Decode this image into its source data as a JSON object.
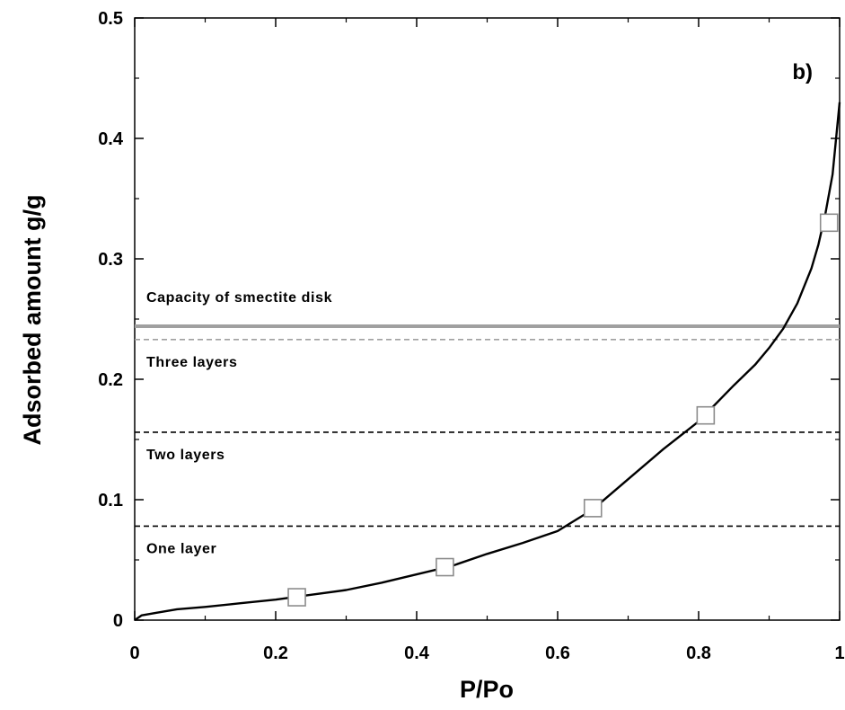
{
  "chart_data": {
    "type": "line",
    "title": "",
    "panel_label": "b)",
    "xlabel": "P/Po",
    "ylabel": "Adsorbed amount g/g",
    "xlim": [
      0,
      1
    ],
    "ylim": [
      0,
      0.5
    ],
    "x_ticks": [
      0,
      0.2,
      0.4,
      0.6,
      0.8,
      1
    ],
    "x_tick_labels": [
      "0",
      "0.2",
      "0.4",
      "0.6",
      "0.8",
      "1"
    ],
    "y_ticks": [
      0,
      0.1,
      0.2,
      0.3,
      0.4,
      0.5
    ],
    "y_tick_labels": [
      "0",
      "0.1",
      "0.2",
      "0.3",
      "0.4",
      "0.5"
    ],
    "grid": false,
    "series": [
      {
        "style": "solid black line",
        "x": [
          0,
          0.01,
          0.03,
          0.06,
          0.1,
          0.15,
          0.2,
          0.25,
          0.3,
          0.35,
          0.4,
          0.45,
          0.5,
          0.55,
          0.6,
          0.65,
          0.7,
          0.75,
          0.8,
          0.85,
          0.88,
          0.9,
          0.92,
          0.94,
          0.96,
          0.97,
          0.98,
          0.99,
          0.995,
          1.0
        ],
        "y": [
          0,
          0.004,
          0.006,
          0.009,
          0.011,
          0.014,
          0.017,
          0.021,
          0.025,
          0.031,
          0.038,
          0.045,
          0.055,
          0.064,
          0.074,
          0.092,
          0.117,
          0.142,
          0.165,
          0.195,
          0.212,
          0.226,
          0.242,
          0.263,
          0.292,
          0.312,
          0.338,
          0.37,
          0.4,
          0.43
        ]
      },
      {
        "style": "open squares",
        "x": [
          0.23,
          0.44,
          0.65,
          0.81,
          0.985
        ],
        "y": [
          0.019,
          0.044,
          0.093,
          0.17,
          0.33
        ]
      }
    ],
    "reference_lines": [
      {
        "y": 0.244,
        "label": "Capacity of smectite disk",
        "style": "solid gray"
      },
      {
        "y": 0.233,
        "label": "Three layers",
        "style": "dashed gray"
      },
      {
        "y": 0.156,
        "label": "Two layers",
        "style": "dashed black"
      },
      {
        "y": 0.078,
        "label": "One layer",
        "style": "dashed black"
      }
    ]
  }
}
